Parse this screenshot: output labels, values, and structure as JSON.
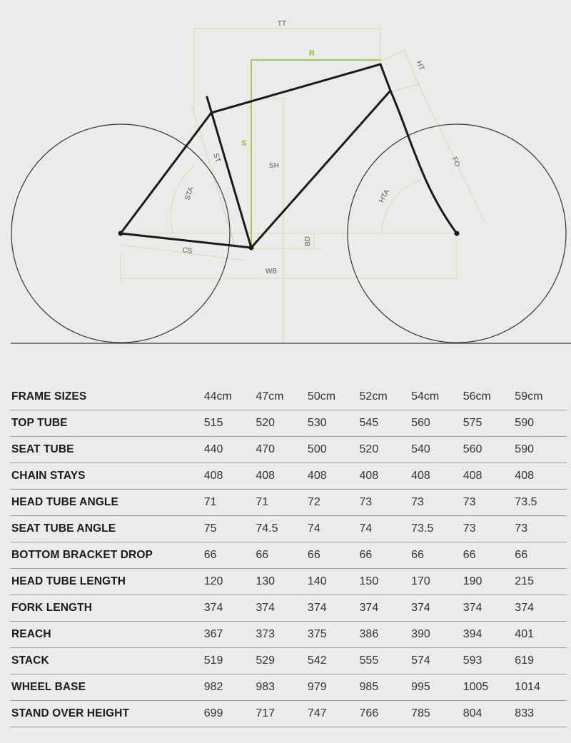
{
  "diagram": {
    "labels": {
      "tt": "TT",
      "r": "R",
      "ht": "HT",
      "s": "S",
      "st": "ST",
      "sh": "SH",
      "sta": "STA",
      "fo": "FO",
      "hta": "HTA",
      "bd": "BD",
      "cs": "CS",
      "wb": "WB"
    },
    "colors": {
      "frame": "#1a1a1a",
      "accent": "#8fbf2a",
      "guides": "#d3dba8",
      "wheels": "#333333",
      "background": "#ebebeb"
    }
  },
  "table": {
    "header_label": "FRAME SIZES",
    "sizes": [
      "44cm",
      "47cm",
      "50cm",
      "52cm",
      "54cm",
      "56cm",
      "59cm"
    ],
    "rows": [
      {
        "label": "TOP TUBE",
        "values": [
          "515",
          "520",
          "530",
          "545",
          "560",
          "575",
          "590"
        ]
      },
      {
        "label": "SEAT TUBE",
        "values": [
          "440",
          "470",
          "500",
          "520",
          "540",
          "560",
          "590"
        ]
      },
      {
        "label": "CHAIN STAYS",
        "values": [
          "408",
          "408",
          "408",
          "408",
          "408",
          "408",
          "408"
        ]
      },
      {
        "label": "HEAD TUBE ANGLE",
        "values": [
          "71",
          "71",
          "72",
          "73",
          "73",
          "73",
          "73.5"
        ]
      },
      {
        "label": "SEAT TUBE ANGLE",
        "values": [
          "75",
          "74.5",
          "74",
          "74",
          "73.5",
          "73",
          "73"
        ]
      },
      {
        "label": "BOTTOM BRACKET DROP",
        "values": [
          "66",
          "66",
          "66",
          "66",
          "66",
          "66",
          "66"
        ]
      },
      {
        "label": "HEAD TUBE LENGTH",
        "values": [
          "120",
          "130",
          "140",
          "150",
          "170",
          "190",
          "215"
        ]
      },
      {
        "label": "FORK LENGTH",
        "values": [
          "374",
          "374",
          "374",
          "374",
          "374",
          "374",
          "374"
        ]
      },
      {
        "label": "REACH",
        "values": [
          "367",
          "373",
          "375",
          "386",
          "390",
          "394",
          "401"
        ]
      },
      {
        "label": "STACK",
        "values": [
          "519",
          "529",
          "542",
          "555",
          "574",
          "593",
          "619"
        ]
      },
      {
        "label": "WHEEL BASE",
        "values": [
          "982",
          "983",
          "979",
          "985",
          "995",
          "1005",
          "1014"
        ]
      },
      {
        "label": "STAND OVER HEIGHT",
        "values": [
          "699",
          "717",
          "747",
          "766",
          "785",
          "804",
          "833"
        ]
      }
    ]
  }
}
